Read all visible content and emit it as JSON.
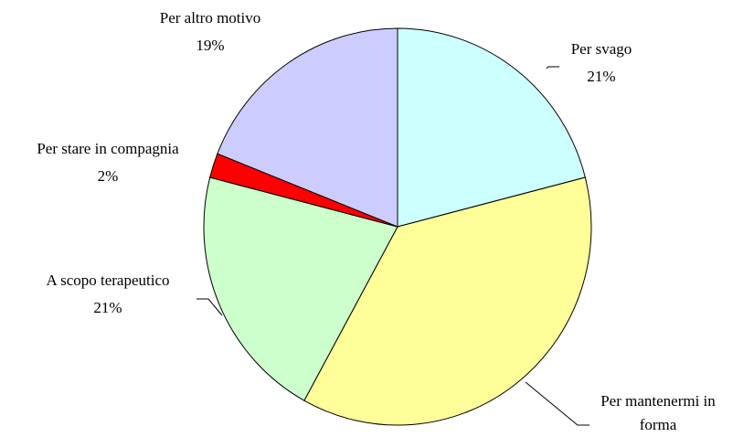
{
  "chart_data": {
    "type": "pie",
    "categories": [
      "Per svago",
      "Per mantenermi in forma",
      "A scopo terapeutico",
      "Per stare in compagnia",
      "Per altro motivo"
    ],
    "values": [
      21,
      37,
      21,
      2,
      19
    ],
    "value_labels": [
      "21%",
      null,
      "21%",
      "2%",
      "19%"
    ],
    "colors": [
      "#ccffff",
      "#ffff99",
      "#ccffcc",
      "#ff0000",
      "#ccccff"
    ]
  }
}
